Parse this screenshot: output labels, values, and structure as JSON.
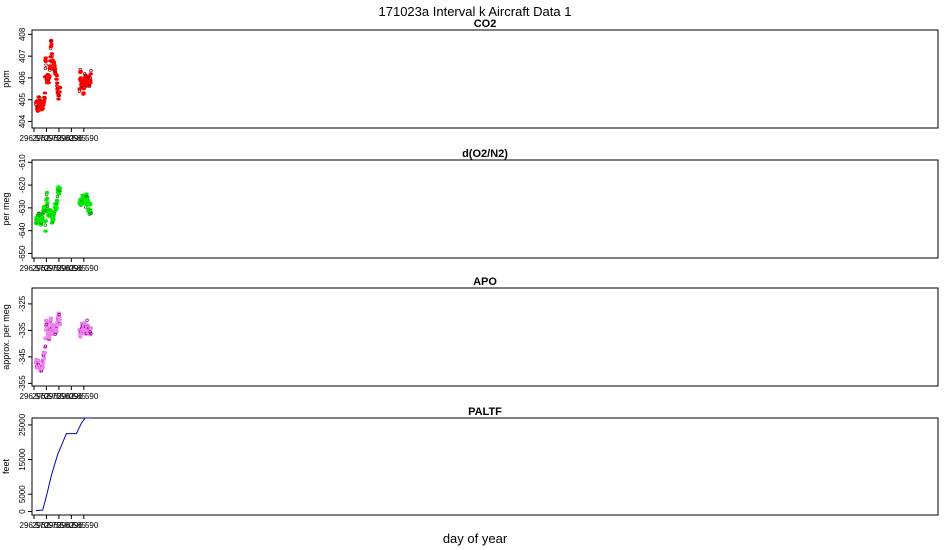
{
  "figure": {
    "title": "171023a   Interval k Aircraft Data 1",
    "xlabel": "day of year"
  },
  "chart_data": [
    {
      "type": "scatter",
      "title": "CO2",
      "ylabel": "ppm",
      "xlim": [
        296.5692,
        296.9327
      ],
      "ylim": [
        403.7,
        408.2
      ],
      "xticks": [
        296.57,
        296.575,
        296.58,
        296.585,
        296.59
      ],
      "yticks": [
        404,
        405,
        406,
        407,
        408
      ],
      "colors": {
        "points": "#ff0000",
        "outline": "#8b0000"
      },
      "series": [
        {
          "segments": [
            {
              "x": [
                296.5708,
                296.5713,
                296.5718,
                296.5723,
                296.5728,
                296.5733,
                296.5738,
                296.5743,
                296.5746,
                296.5749,
                296.5752,
                296.5756,
                296.576,
                296.5764,
                296.5768,
                296.577,
                296.5772,
                296.5776,
                296.578,
                296.5784,
                296.5788,
                296.5792,
                296.5796,
                296.58,
                296.5805
              ],
              "y": [
                405.0,
                404.7,
                404.8,
                404.9,
                404.6,
                404.7,
                404.8,
                405.1,
                407.1,
                406.3,
                405.9,
                406.0,
                405.9,
                406.4,
                407.6,
                407.8,
                406.8,
                406.5,
                406.6,
                406.4,
                406.1,
                405.8,
                405.4,
                405.2,
                405.6
              ]
            }
          ],
          "x": [
            296.5882,
            296.5886,
            296.589,
            296.5894,
            296.5898,
            296.5902,
            296.5906,
            296.591,
            296.5914,
            296.5918,
            296.5922,
            296.5926,
            296.5929
          ],
          "y": [
            405.2,
            406.3,
            405.6,
            405.9,
            405.4,
            405.9,
            406.1,
            405.7,
            405.9,
            406.0,
            405.8,
            405.9,
            406.3
          ]
        }
      ]
    },
    {
      "type": "scatter",
      "title": "d(O2/N2)",
      "ylabel": "per meg",
      "xlim": [
        296.5692,
        296.9327
      ],
      "ylim": [
        -652,
        -609
      ],
      "xticks": [
        296.57,
        296.575,
        296.58,
        296.585,
        296.59
      ],
      "yticks": [
        -650,
        -640,
        -630,
        -620,
        -610
      ],
      "colors": {
        "points": "#00ee00",
        "outline": "#006400"
      },
      "series": [
        {
          "segments": [
            {
              "x": [
                296.5708,
                296.5713,
                296.5718,
                296.5723,
                296.5728,
                296.5733,
                296.5738,
                296.5743,
                296.5746,
                296.5749,
                296.5752,
                296.5756,
                296.576,
                296.5764,
                296.5768,
                296.5772,
                296.5776,
                296.578,
                296.5784,
                296.5788,
                296.5792,
                296.5796,
                296.58,
                296.5805
              ],
              "y": [
                -636,
                -635,
                -634,
                -633,
                -637,
                -634,
                -632,
                -631,
                -641,
                -630,
                -625,
                -633,
                -631,
                -634,
                -631,
                -636,
                -635,
                -632,
                -630,
                -630,
                -629,
                -621,
                -622,
                -621
              ]
            }
          ],
          "x": [
            296.5882,
            296.5886,
            296.589,
            296.5894,
            296.5898,
            296.5902,
            296.5906,
            296.591,
            296.5914,
            296.5918,
            296.5922,
            296.5926,
            296.5929
          ],
          "y": [
            -628,
            -627,
            -628,
            -626,
            -627,
            -626,
            -628,
            -625,
            -627,
            -630,
            -632,
            -629,
            -633
          ]
        }
      ]
    },
    {
      "type": "scatter",
      "title": "APO",
      "ylabel": "approx. per meg",
      "xlim": [
        296.5692,
        296.9327
      ],
      "ylim": [
        -356,
        -319
      ],
      "xticks": [
        296.57,
        296.575,
        296.58,
        296.585,
        296.59
      ],
      "yticks": [
        -355,
        -345,
        -335,
        -325
      ],
      "colors": {
        "points": "#ee82ee",
        "outline": "#8b008b"
      },
      "series": [
        {
          "segments": [
            {
              "x": [
                296.5708,
                296.5713,
                296.5718,
                296.5723,
                296.5728,
                296.5733,
                296.5738,
                296.5743,
                296.5746,
                296.5749,
                296.5752,
                296.5756,
                296.576,
                296.5764,
                296.5768,
                296.5772,
                296.5776,
                296.578,
                296.5784,
                296.5788,
                296.5792,
                296.5796,
                296.58,
                296.5805
              ],
              "y": [
                -348,
                -348,
                -347,
                -349,
                -350,
                -349,
                -346,
                -344,
                -339,
                -331,
                -333,
                -336,
                -338,
                -334,
                -331,
                -336,
                -333,
                -335,
                -334,
                -336,
                -333,
                -330,
                -329,
                -333
              ]
            }
          ],
          "x": [
            296.5882,
            296.5886,
            296.589,
            296.5894,
            296.5898,
            296.5902,
            296.5906,
            296.591,
            296.5914,
            296.5918,
            296.5922,
            296.5926,
            296.5929
          ],
          "y": [
            -334,
            -337,
            -335,
            -334,
            -336,
            -333,
            -334,
            -336,
            -333,
            -334,
            -336,
            -335,
            -337
          ]
        }
      ]
    },
    {
      "type": "line",
      "title": "PALTF",
      "ylabel": "feet",
      "xlim": [
        296.5692,
        296.9327
      ],
      "ylim": [
        -1000,
        27000
      ],
      "xticks": [
        296.57,
        296.575,
        296.58,
        296.585,
        296.59
      ],
      "yticks": [
        0,
        5000,
        15000,
        25000
      ],
      "colors": {
        "line": "#0000cd"
      },
      "series": [
        {
          "x": [
            296.5708,
            296.5735,
            296.575,
            296.577,
            296.5795,
            296.583,
            296.587,
            296.589,
            296.5905,
            296.5929
          ],
          "y": [
            300,
            400,
            4500,
            10500,
            16500,
            22500,
            22500,
            25500,
            27000,
            27000
          ]
        }
      ]
    }
  ]
}
